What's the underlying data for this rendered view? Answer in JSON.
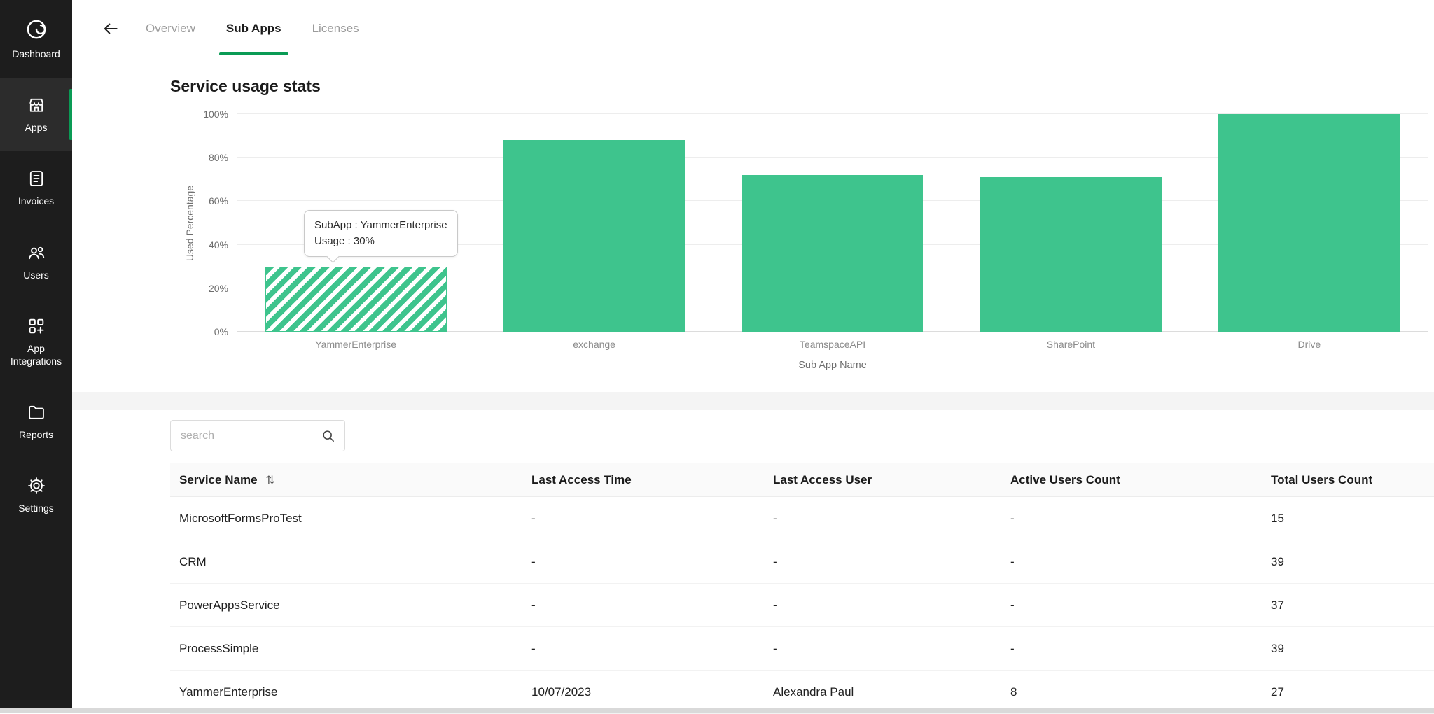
{
  "colors": {
    "accent_green": "#0a9b55",
    "bar_green": "#3ec48d",
    "sidebar_bg": "#1d1d1d"
  },
  "sidebar": {
    "items": [
      {
        "id": "dashboard",
        "label": "Dashboard",
        "icon": "dashboard-logo-icon",
        "active": false
      },
      {
        "id": "apps",
        "label": "Apps",
        "icon": "storefront-icon",
        "active": true
      },
      {
        "id": "invoices",
        "label": "Invoices",
        "icon": "invoice-document-icon",
        "active": false
      },
      {
        "id": "users",
        "label": "Users",
        "icon": "users-icon",
        "active": false
      },
      {
        "id": "app-integrations",
        "label": "App Integrations",
        "icon": "integrations-icon",
        "active": false
      },
      {
        "id": "reports",
        "label": "Reports",
        "icon": "folder-icon",
        "active": false
      },
      {
        "id": "settings",
        "label": "Settings",
        "icon": "gear-icon",
        "active": false
      }
    ]
  },
  "header": {
    "back_icon": "arrow-left-icon",
    "tabs": [
      {
        "label": "Overview",
        "active": false
      },
      {
        "label": "Sub Apps",
        "active": true
      },
      {
        "label": "Licenses",
        "active": false
      }
    ]
  },
  "chart_section": {
    "title": "Service usage stats"
  },
  "chart_data": {
    "type": "bar",
    "title": "Service usage stats",
    "categories": [
      "YammerEnterprise",
      "exchange",
      "TeamspaceAPI",
      "SharePoint",
      "Drive"
    ],
    "values": [
      30,
      88,
      72,
      71,
      100
    ],
    "xlabel": "Sub App Name",
    "ylabel": "Used Percentage",
    "ylim": [
      0,
      100
    ],
    "yticks": [
      0,
      20,
      40,
      60,
      80,
      100
    ],
    "ytick_format": "percent",
    "grid": true,
    "legend": false,
    "bar_color": "#3ec48d",
    "hatched_index": 0,
    "tooltip": {
      "line1": "SubApp : YammerEnterprise",
      "line2": "Usage : 30%",
      "target_index": 0
    }
  },
  "table": {
    "search_placeholder": "search",
    "search_icon": "search-icon",
    "sort_icon": "sort-arrows-icon",
    "columns": [
      "Service Name",
      "Last Access Time",
      "Last Access User",
      "Active Users Count",
      "Total Users Count"
    ],
    "rows": [
      [
        "MicrosoftFormsProTest",
        "-",
        "-",
        "-",
        "15"
      ],
      [
        "CRM",
        "-",
        "-",
        "-",
        "39"
      ],
      [
        "PowerAppsService",
        "-",
        "-",
        "-",
        "37"
      ],
      [
        "ProcessSimple",
        "-",
        "-",
        "-",
        "39"
      ],
      [
        "YammerEnterprise",
        "10/07/2023",
        "Alexandra Paul",
        "8",
        "27"
      ]
    ]
  }
}
